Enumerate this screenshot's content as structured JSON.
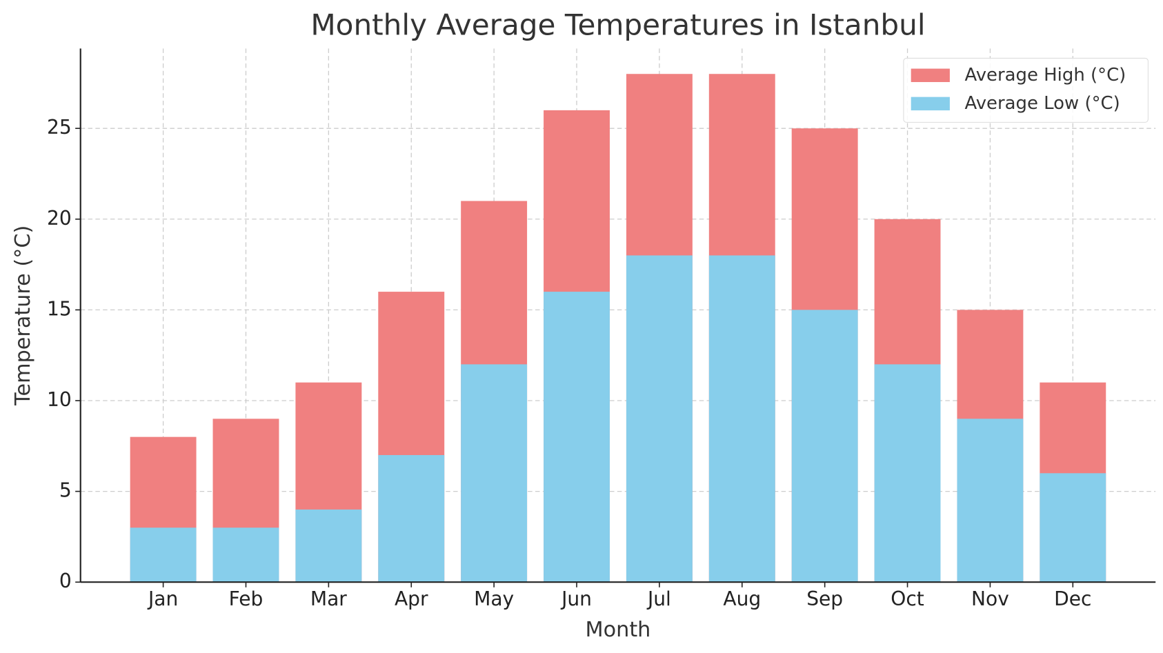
{
  "chart_data": {
    "type": "bar",
    "title": "Monthly Average Temperatures in Istanbul",
    "x_label": "Month",
    "y_label": "Temperature (°C)",
    "categories": [
      "Jan",
      "Feb",
      "Mar",
      "Apr",
      "May",
      "Jun",
      "Jul",
      "Aug",
      "Sep",
      "Oct",
      "Nov",
      "Dec"
    ],
    "series": [
      {
        "name": "Average High (°C)",
        "color": "#f08080",
        "values": [
          8,
          9,
          11,
          16,
          21,
          26,
          28,
          28,
          25,
          20,
          15,
          11
        ]
      },
      {
        "name": "Average Low (°C)",
        "color": "#87ceeb",
        "values": [
          3,
          3,
          4,
          7,
          12,
          16,
          18,
          18,
          15,
          12,
          9,
          6
        ]
      }
    ],
    "ylim": [
      0,
      29.4
    ],
    "yticks": [
      0,
      5,
      10,
      15,
      20,
      25
    ],
    "grid": true,
    "legend": "upper right"
  }
}
